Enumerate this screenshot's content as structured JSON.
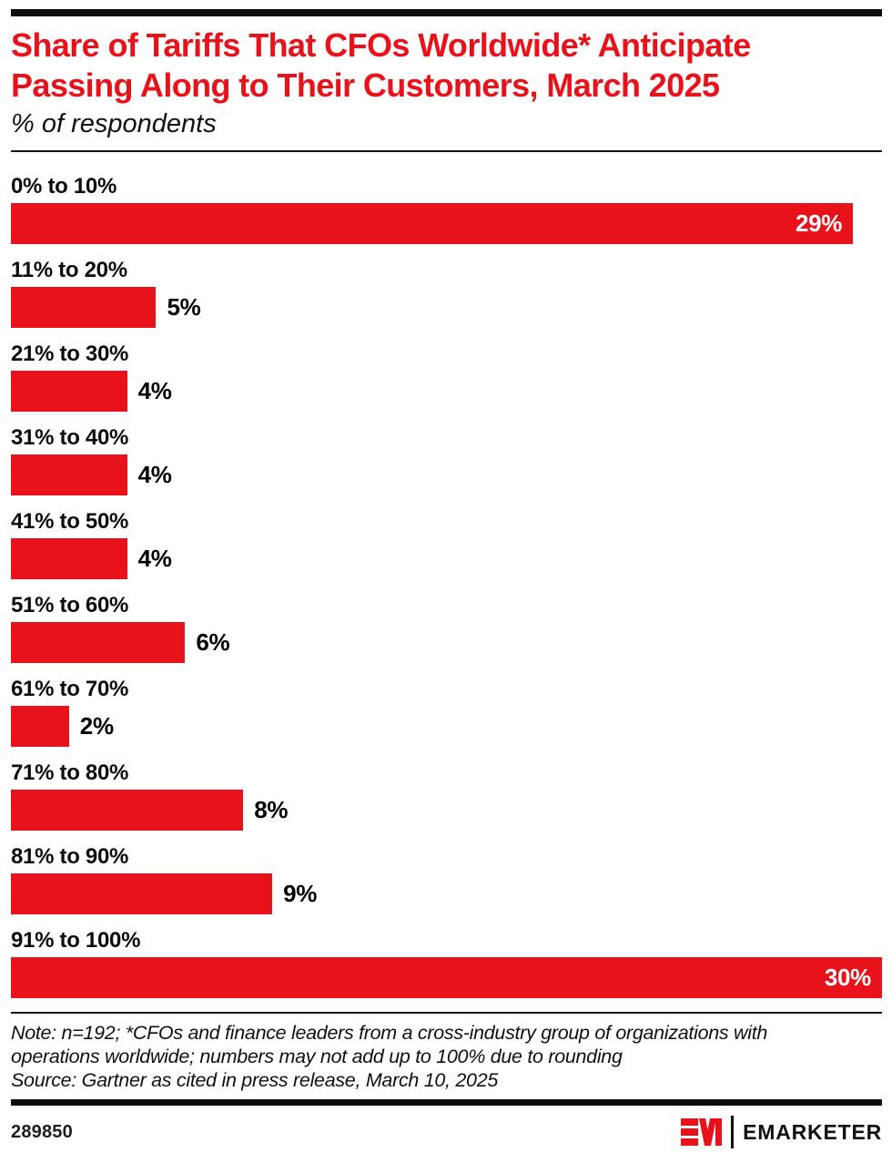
{
  "page": {
    "accent_red": "#e8121a",
    "background": "#ffffff"
  },
  "header": {
    "title_line1": "Share of Tariffs That CFOs Worldwide* Anticipate",
    "title_line2": "Passing Along to Their Customers, March 2025",
    "subtitle": "% of respondents"
  },
  "chart_data": {
    "type": "bar",
    "orientation": "horizontal",
    "title": "Share of Tariffs That CFOs Worldwide* Anticipate Passing Along to Their Customers, March 2025",
    "subtitle": "% of respondents",
    "categories": [
      "0% to 10%",
      "11% to 20%",
      "21% to 30%",
      "31% to 40%",
      "41% to 50%",
      "51% to 60%",
      "61% to 70%",
      "71% to 80%",
      "81% to 90%",
      "91% to 100%"
    ],
    "values": [
      29,
      5,
      4,
      4,
      4,
      6,
      2,
      8,
      9,
      30
    ],
    "value_suffix": "%",
    "xlim": [
      0,
      30
    ],
    "grid": false,
    "legend": "none",
    "bar_color": "#e8121a",
    "inside_label_color": "#ffffff",
    "outside_label_color": "#000000"
  },
  "footnote": {
    "note_line1": "Note: n=192; *CFOs and finance leaders from a cross-industry group of organizations with",
    "note_line2": "operations worldwide; numbers may not add up to 100% due to rounding",
    "source": "Source: Gartner as cited in press release, March 10, 2025"
  },
  "footer": {
    "chart_id": "289850",
    "brand": "EMARKETER"
  }
}
